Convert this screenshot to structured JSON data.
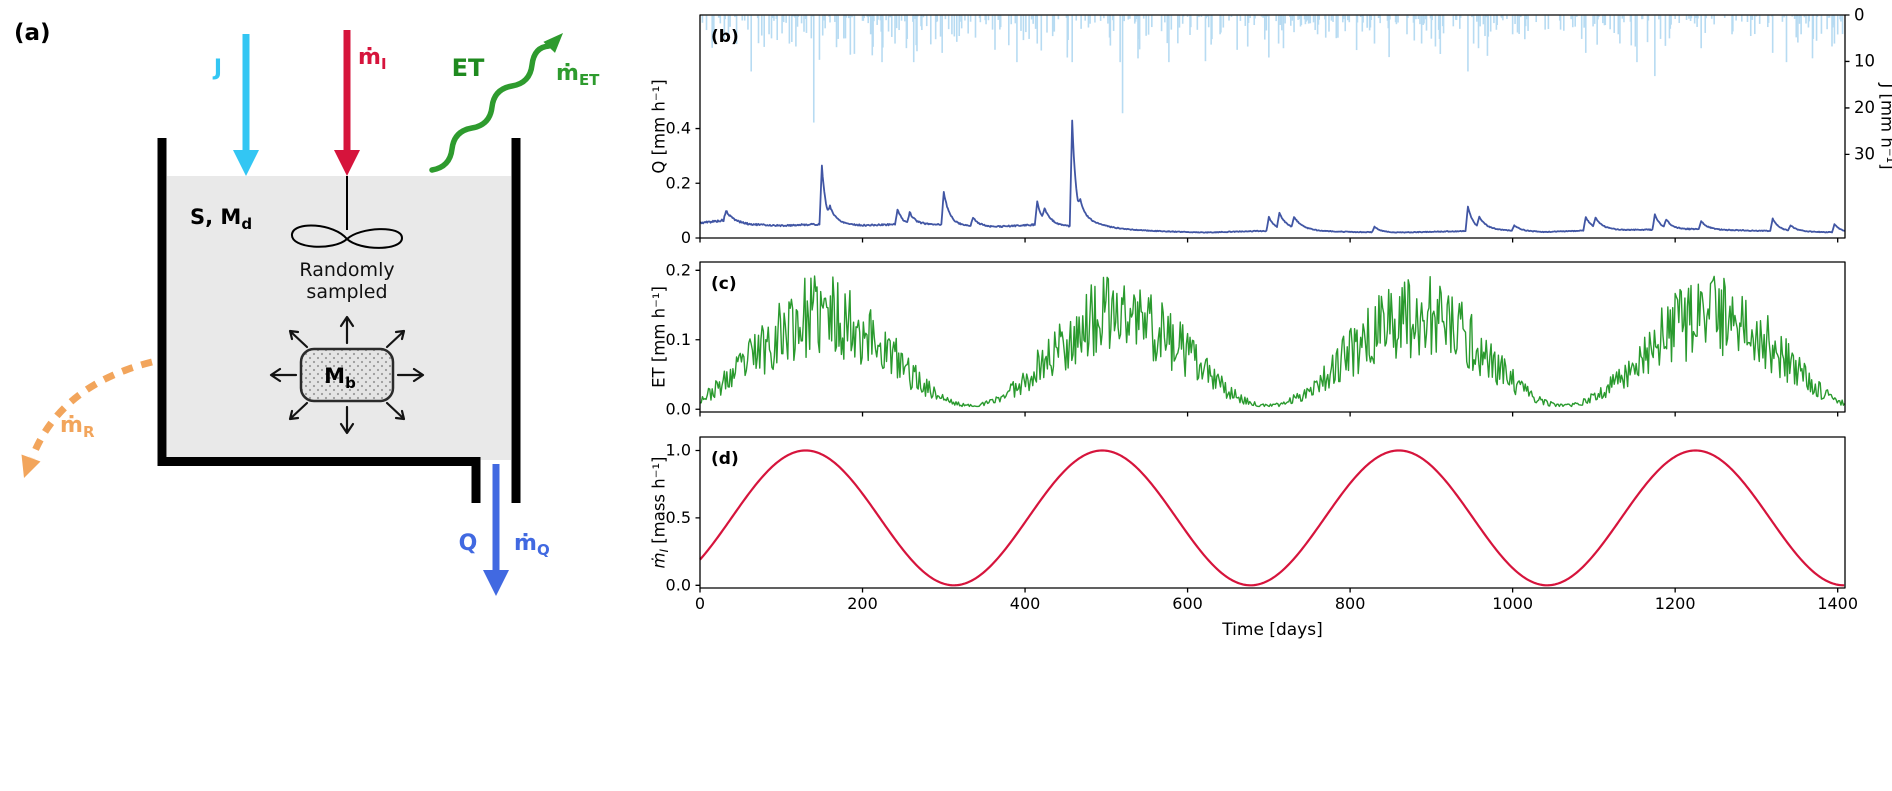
{
  "panel_a": {
    "label": "(a)",
    "tank_label": {
      "base": "S, M",
      "sub": "d"
    },
    "mixer_caption_line1": "Randomly",
    "mixer_caption_line2": "sampled",
    "mb_label": {
      "base": "M",
      "sub": "b"
    },
    "water_color": "#e9e9e9",
    "arrows": {
      "j": {
        "label": "J",
        "color": "#33c6f3"
      },
      "m_i": {
        "base": "ṁ",
        "sub": "I",
        "color": "#d6143c"
      },
      "et": {
        "label": "ET",
        "color": "#1f8a1f"
      },
      "m_et": {
        "base": "ṁ",
        "sub": "ET",
        "color": "#2e9b2e"
      },
      "m_r": {
        "base": "ṁ",
        "sub": "R",
        "color": "#f2a55c"
      },
      "q": {
        "label": "Q",
        "color": "#4169e1"
      },
      "m_q": {
        "base": "ṁ",
        "sub": "Q",
        "color": "#4169e1"
      }
    }
  },
  "x_axis": {
    "label": "Time [days]",
    "lim": [
      0,
      1409
    ],
    "ticks": [
      0,
      200,
      400,
      600,
      800,
      1000,
      1200,
      1400
    ],
    "tick_labels": [
      "0",
      "200",
      "400",
      "600",
      "800",
      "1000",
      "1200",
      "1400"
    ]
  },
  "chart_data": [
    {
      "id": "b",
      "panel_label": "(b)",
      "type": "line",
      "y_left": {
        "label": "Q [mm h⁻¹]",
        "lim": [
          0,
          0.815
        ],
        "ticks": [
          0,
          0.2,
          0.4
        ],
        "tick_labels": [
          "0",
          "0.2",
          "0.4"
        ]
      },
      "y_right": {
        "label": "J [mm h⁻¹]",
        "lim": [
          0,
          48
        ],
        "inverted": true,
        "ticks": [
          0,
          10,
          20,
          30
        ],
        "tick_labels": [
          "0",
          "10",
          "20",
          "30"
        ]
      },
      "series": [
        {
          "name": "precipitation-J",
          "type": "bars_top",
          "axis": "right",
          "color": "#b7dbf2",
          "bar_width": 1.6,
          "random": {
            "seed": 11,
            "p_wet": 0.3,
            "scale": 2.4,
            "cap": 10
          },
          "events": [
            [
              30,
              5
            ],
            [
              63,
              12
            ],
            [
              85,
              4
            ],
            [
              110,
              6
            ],
            [
              140,
              23
            ],
            [
              147,
              9.5
            ],
            [
              170,
              5
            ],
            [
              210,
              4
            ],
            [
              240,
              6
            ],
            [
              255,
              5
            ],
            [
              298,
              8
            ],
            [
              310,
              4
            ],
            [
              360,
              3
            ],
            [
              405,
              5
            ],
            [
              415,
              6
            ],
            [
              420,
              7.5
            ],
            [
              452,
              9
            ],
            [
              458,
              10
            ],
            [
              520,
              21
            ],
            [
              540,
              5
            ],
            [
              580,
              3
            ],
            [
              640,
              4
            ],
            [
              700,
              9
            ],
            [
              712,
              6
            ],
            [
              718,
              7
            ],
            [
              760,
              4
            ],
            [
              830,
              6
            ],
            [
              870,
              4
            ],
            [
              910,
              5
            ],
            [
              945,
              12
            ],
            [
              952,
              6
            ],
            [
              958,
              7
            ],
            [
              1000,
              4
            ],
            [
              1040,
              3
            ],
            [
              1085,
              5
            ],
            [
              1090,
              8
            ],
            [
              1130,
              4
            ],
            [
              1175,
              13
            ],
            [
              1182,
              5
            ],
            [
              1188,
              6.5
            ],
            [
              1232,
              7
            ],
            [
              1270,
              4
            ],
            [
              1320,
              8
            ],
            [
              1355,
              4
            ],
            [
              1370,
              5
            ],
            [
              1396,
              6
            ]
          ]
        },
        {
          "name": "discharge-Q",
          "type": "line",
          "axis": "left",
          "color": "#4156a4",
          "line_width": 1.8,
          "baseflow": [
            [
              0,
              0.055
            ],
            [
              30,
              0.065
            ],
            [
              60,
              0.05
            ],
            [
              100,
              0.045
            ],
            [
              140,
              0.05
            ],
            [
              200,
              0.045
            ],
            [
              240,
              0.05
            ],
            [
              290,
              0.05
            ],
            [
              360,
              0.04
            ],
            [
              420,
              0.05
            ],
            [
              500,
              0.032
            ],
            [
              560,
              0.025
            ],
            [
              620,
              0.02
            ],
            [
              680,
              0.025
            ],
            [
              740,
              0.028
            ],
            [
              800,
              0.022
            ],
            [
              860,
              0.02
            ],
            [
              920,
              0.024
            ],
            [
              980,
              0.028
            ],
            [
              1040,
              0.022
            ],
            [
              1100,
              0.028
            ],
            [
              1160,
              0.03
            ],
            [
              1220,
              0.032
            ],
            [
              1280,
              0.028
            ],
            [
              1340,
              0.024
            ],
            [
              1409,
              0.02
            ]
          ],
          "spikes": [
            [
              32,
              0.035,
              8
            ],
            [
              150,
              0.215,
              5
            ],
            [
              160,
              0.04,
              12
            ],
            [
              243,
              0.055,
              6
            ],
            [
              258,
              0.04,
              7
            ],
            [
              300,
              0.12,
              7
            ],
            [
              336,
              0.03,
              8
            ],
            [
              415,
              0.085,
              6
            ],
            [
              424,
              0.04,
              9
            ],
            [
              458,
              0.385,
              5
            ],
            [
              468,
              0.05,
              22
            ],
            [
              700,
              0.05,
              8
            ],
            [
              713,
              0.055,
              10
            ],
            [
              731,
              0.04,
              10
            ],
            [
              830,
              0.02,
              8
            ],
            [
              945,
              0.09,
              7
            ],
            [
              959,
              0.04,
              10
            ],
            [
              1002,
              0.02,
              8
            ],
            [
              1090,
              0.05,
              8
            ],
            [
              1102,
              0.035,
              10
            ],
            [
              1175,
              0.055,
              7
            ],
            [
              1189,
              0.03,
              8
            ],
            [
              1232,
              0.03,
              8
            ],
            [
              1320,
              0.045,
              8
            ],
            [
              1342,
              0.02,
              8
            ],
            [
              1396,
              0.03,
              8
            ]
          ],
          "noise": {
            "seed": 5,
            "frac": 0.06
          }
        }
      ]
    },
    {
      "id": "c",
      "panel_label": "(c)",
      "type": "line",
      "y_left": {
        "label": "ET [mm h⁻¹]",
        "lim": [
          -0.004,
          0.212
        ],
        "ticks": [
          0,
          0.1,
          0.2
        ],
        "tick_labels": [
          "0.0",
          "0.1",
          "0.2"
        ]
      },
      "series": [
        {
          "name": "evapotranspiration-ET",
          "type": "line",
          "axis": "left",
          "color": "#2a9a2e",
          "line_width": 1.4,
          "seasonal": {
            "mean": 0.07,
            "amp": 0.065,
            "period": 365,
            "peak_day": 151
          },
          "noise": {
            "seed": 23,
            "frac": 0.45
          },
          "floor": 0.004,
          "step_days": 1.5
        }
      ]
    },
    {
      "id": "d",
      "panel_label": "(d)",
      "type": "line",
      "y_left": {
        "label_segments": [
          {
            "t": "ṁ",
            "italic": true
          },
          {
            "t": "I",
            "sub": true,
            "italic": true
          },
          {
            "t": " [mass h⁻¹]"
          }
        ],
        "lim": [
          -0.02,
          1.1
        ],
        "ticks": [
          0,
          0.5,
          1.0
        ],
        "tick_labels": [
          "0.0",
          "0.5",
          "1.0"
        ]
      },
      "series": [
        {
          "name": "mass-input-rate",
          "type": "line",
          "axis": "left",
          "color": "#d6143c",
          "line_width": 2.2,
          "sinusoid": {
            "mean": 0.5,
            "amp": 0.5,
            "period": 365,
            "peak_day": 130
          }
        }
      ]
    }
  ]
}
